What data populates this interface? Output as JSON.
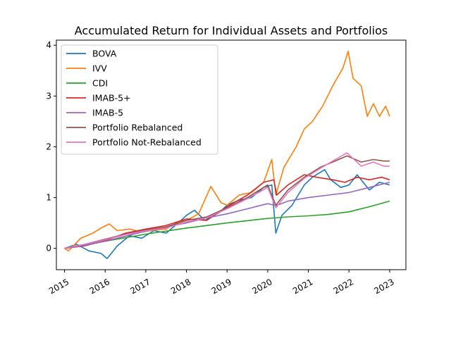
{
  "chart_data": {
    "type": "line",
    "title": "Accumulated Return for Individual Assets and Portfolios",
    "xlabel": "",
    "ylabel": "",
    "xlim": [
      2014.8,
      2023.4
    ],
    "ylim": [
      -0.42,
      4.1
    ],
    "x_ticks": [
      2015,
      2016,
      2017,
      2018,
      2019,
      2020,
      2021,
      2022,
      2023
    ],
    "x_tick_labels": [
      "2015",
      "2016",
      "2017",
      "2018",
      "2019",
      "2020",
      "2021",
      "2022",
      "2023"
    ],
    "y_ticks": [
      0,
      1,
      2,
      3,
      4
    ],
    "y_tick_labels": [
      "0",
      "1",
      "2",
      "3",
      "4"
    ],
    "grid": false,
    "legend_position": "upper-left",
    "series": [
      {
        "name": "BOVA",
        "color": "#1f77b4",
        "points": [
          [
            2015.0,
            0.0
          ],
          [
            2015.3,
            0.08
          ],
          [
            2015.6,
            -0.05
          ],
          [
            2015.9,
            -0.1
          ],
          [
            2016.05,
            -0.2
          ],
          [
            2016.3,
            0.05
          ],
          [
            2016.6,
            0.25
          ],
          [
            2016.9,
            0.2
          ],
          [
            2017.2,
            0.35
          ],
          [
            2017.5,
            0.3
          ],
          [
            2017.8,
            0.5
          ],
          [
            2018.0,
            0.65
          ],
          [
            2018.2,
            0.75
          ],
          [
            2018.45,
            0.55
          ],
          [
            2018.8,
            0.7
          ],
          [
            2019.0,
            0.85
          ],
          [
            2019.3,
            0.95
          ],
          [
            2019.6,
            1.0
          ],
          [
            2019.9,
            1.2
          ],
          [
            2020.1,
            1.25
          ],
          [
            2020.2,
            0.3
          ],
          [
            2020.35,
            0.65
          ],
          [
            2020.6,
            0.85
          ],
          [
            2020.9,
            1.25
          ],
          [
            2021.1,
            1.4
          ],
          [
            2021.4,
            1.55
          ],
          [
            2021.55,
            1.35
          ],
          [
            2021.8,
            1.2
          ],
          [
            2022.0,
            1.25
          ],
          [
            2022.2,
            1.45
          ],
          [
            2022.5,
            1.15
          ],
          [
            2022.75,
            1.3
          ],
          [
            2023.0,
            1.25
          ]
        ]
      },
      {
        "name": "IVV",
        "color": "#ff7f0e",
        "points": [
          [
            2015.0,
            0.0
          ],
          [
            2015.1,
            -0.05
          ],
          [
            2015.4,
            0.2
          ],
          [
            2015.7,
            0.3
          ],
          [
            2015.9,
            0.4
          ],
          [
            2016.1,
            0.48
          ],
          [
            2016.3,
            0.35
          ],
          [
            2016.6,
            0.38
          ],
          [
            2016.9,
            0.32
          ],
          [
            2017.2,
            0.36
          ],
          [
            2017.5,
            0.38
          ],
          [
            2017.8,
            0.52
          ],
          [
            2018.0,
            0.55
          ],
          [
            2018.3,
            0.68
          ],
          [
            2018.6,
            1.22
          ],
          [
            2018.85,
            0.9
          ],
          [
            2019.0,
            0.85
          ],
          [
            2019.3,
            1.05
          ],
          [
            2019.6,
            1.1
          ],
          [
            2019.9,
            1.3
          ],
          [
            2020.1,
            1.75
          ],
          [
            2020.2,
            1.05
          ],
          [
            2020.4,
            1.6
          ],
          [
            2020.7,
            2.0
          ],
          [
            2020.9,
            2.35
          ],
          [
            2021.1,
            2.5
          ],
          [
            2021.35,
            2.8
          ],
          [
            2021.6,
            3.2
          ],
          [
            2021.85,
            3.55
          ],
          [
            2021.98,
            3.88
          ],
          [
            2022.1,
            3.35
          ],
          [
            2022.3,
            3.2
          ],
          [
            2022.45,
            2.6
          ],
          [
            2022.6,
            2.85
          ],
          [
            2022.75,
            2.6
          ],
          [
            2022.9,
            2.8
          ],
          [
            2023.0,
            2.6
          ]
        ]
      },
      {
        "name": "CDI",
        "color": "#2ca02c",
        "points": [
          [
            2015.0,
            0.0
          ],
          [
            2016.0,
            0.14
          ],
          [
            2017.0,
            0.28
          ],
          [
            2018.0,
            0.4
          ],
          [
            2019.0,
            0.5
          ],
          [
            2020.0,
            0.59
          ],
          [
            2020.5,
            0.62
          ],
          [
            2021.0,
            0.64
          ],
          [
            2021.5,
            0.67
          ],
          [
            2022.0,
            0.72
          ],
          [
            2022.5,
            0.82
          ],
          [
            2023.0,
            0.93
          ]
        ]
      },
      {
        "name": "IMAB-5+",
        "color": "#d62728",
        "points": [
          [
            2015.0,
            0.0
          ],
          [
            2015.5,
            0.05
          ],
          [
            2016.0,
            0.15
          ],
          [
            2016.5,
            0.3
          ],
          [
            2017.0,
            0.38
          ],
          [
            2017.5,
            0.45
          ],
          [
            2018.0,
            0.58
          ],
          [
            2018.5,
            0.55
          ],
          [
            2019.0,
            0.82
          ],
          [
            2019.5,
            1.05
          ],
          [
            2019.9,
            1.3
          ],
          [
            2020.15,
            1.35
          ],
          [
            2020.22,
            1.05
          ],
          [
            2020.5,
            1.25
          ],
          [
            2020.9,
            1.45
          ],
          [
            2021.2,
            1.4
          ],
          [
            2021.6,
            1.35
          ],
          [
            2021.9,
            1.3
          ],
          [
            2022.2,
            1.4
          ],
          [
            2022.5,
            1.35
          ],
          [
            2022.8,
            1.4
          ],
          [
            2023.0,
            1.35
          ]
        ]
      },
      {
        "name": "IMAB-5",
        "color": "#9467bd",
        "points": [
          [
            2015.0,
            0.0
          ],
          [
            2015.5,
            0.06
          ],
          [
            2016.0,
            0.14
          ],
          [
            2016.5,
            0.24
          ],
          [
            2017.0,
            0.34
          ],
          [
            2017.5,
            0.42
          ],
          [
            2018.0,
            0.5
          ],
          [
            2018.5,
            0.6
          ],
          [
            2019.0,
            0.68
          ],
          [
            2019.5,
            0.78
          ],
          [
            2020.0,
            0.88
          ],
          [
            2020.2,
            0.84
          ],
          [
            2020.5,
            0.93
          ],
          [
            2021.0,
            1.0
          ],
          [
            2021.5,
            1.05
          ],
          [
            2022.0,
            1.1
          ],
          [
            2022.5,
            1.2
          ],
          [
            2023.0,
            1.3
          ]
        ]
      },
      {
        "name": "Portfolio Rebalanced",
        "color": "#8c564b",
        "points": [
          [
            2015.0,
            0.0
          ],
          [
            2015.5,
            0.08
          ],
          [
            2016.0,
            0.18
          ],
          [
            2016.5,
            0.28
          ],
          [
            2017.0,
            0.36
          ],
          [
            2017.5,
            0.42
          ],
          [
            2018.0,
            0.55
          ],
          [
            2018.5,
            0.62
          ],
          [
            2019.0,
            0.8
          ],
          [
            2019.5,
            1.0
          ],
          [
            2020.0,
            1.25
          ],
          [
            2020.2,
            0.85
          ],
          [
            2020.5,
            1.15
          ],
          [
            2020.9,
            1.4
          ],
          [
            2021.3,
            1.6
          ],
          [
            2021.6,
            1.7
          ],
          [
            2021.95,
            1.82
          ],
          [
            2022.3,
            1.7
          ],
          [
            2022.6,
            1.75
          ],
          [
            2022.85,
            1.72
          ],
          [
            2023.0,
            1.72
          ]
        ]
      },
      {
        "name": "Portfolio Not-Rebalanced",
        "color": "#e377c2",
        "points": [
          [
            2015.0,
            0.0
          ],
          [
            2015.5,
            0.08
          ],
          [
            2016.0,
            0.17
          ],
          [
            2016.5,
            0.27
          ],
          [
            2017.0,
            0.35
          ],
          [
            2017.5,
            0.4
          ],
          [
            2018.0,
            0.52
          ],
          [
            2018.5,
            0.6
          ],
          [
            2019.0,
            0.78
          ],
          [
            2019.5,
            0.98
          ],
          [
            2020.0,
            1.2
          ],
          [
            2020.2,
            0.8
          ],
          [
            2020.5,
            1.1
          ],
          [
            2020.9,
            1.38
          ],
          [
            2021.3,
            1.58
          ],
          [
            2021.6,
            1.72
          ],
          [
            2021.95,
            1.88
          ],
          [
            2022.3,
            1.62
          ],
          [
            2022.6,
            1.7
          ],
          [
            2022.85,
            1.62
          ],
          [
            2023.0,
            1.62
          ]
        ]
      }
    ]
  }
}
